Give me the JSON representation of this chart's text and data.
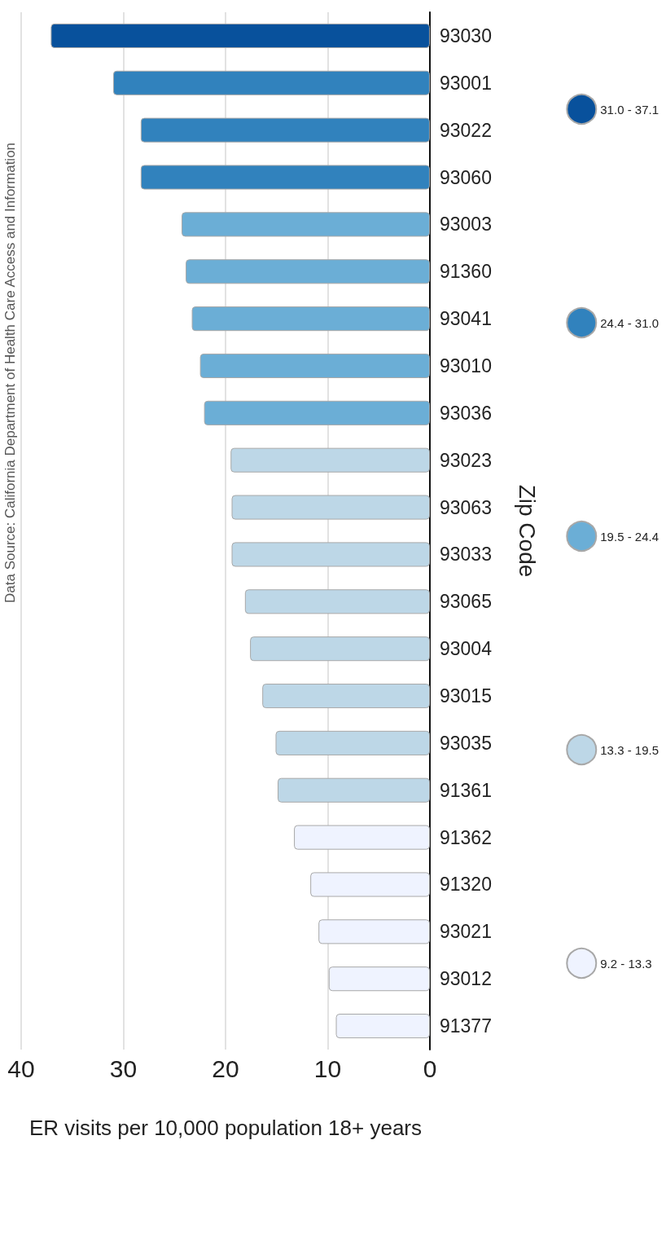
{
  "chart_data": {
    "type": "bar",
    "orientation": "horizontal",
    "xlabel": "ER visits per 10,000 population 18+ years",
    "ylabel": "Zip Code",
    "annotations": [
      "Data Source: California Department of Health Care Access and Information"
    ],
    "categories": [
      "93030",
      "93001",
      "93022",
      "93060",
      "93003",
      "91360",
      "93041",
      "93010",
      "93036",
      "93023",
      "93063",
      "93033",
      "93065",
      "93004",
      "93015",
      "93035",
      "91361",
      "91362",
      "91320",
      "93021",
      "93012",
      "91377"
    ],
    "stacked": true,
    "series": [
      {
        "name": "31.0 - 37.1",
        "color": "#08519c",
        "values": [
          37.1,
          null,
          null,
          null,
          null,
          null,
          null,
          null,
          null,
          null,
          null,
          null,
          null,
          null,
          null,
          null,
          null,
          null,
          null,
          null,
          null,
          null
        ]
      },
      {
        "name": "24.4 - 31.0",
        "color": "#3182bd",
        "values": [
          null,
          31.0,
          28.3,
          28.3,
          null,
          null,
          null,
          null,
          null,
          null,
          null,
          null,
          null,
          null,
          null,
          null,
          null,
          null,
          null,
          null,
          null,
          null
        ]
      },
      {
        "name": "19.5 - 24.4",
        "color": "#6baed6",
        "values": [
          null,
          null,
          null,
          null,
          24.3,
          23.9,
          23.3,
          22.5,
          22.1,
          null,
          null,
          null,
          null,
          null,
          null,
          null,
          null,
          null,
          null,
          null,
          null,
          null
        ]
      },
      {
        "name": "13.3 - 19.5",
        "color": "#bdd7e7",
        "values": [
          null,
          null,
          null,
          null,
          null,
          null,
          null,
          null,
          null,
          19.5,
          19.4,
          19.4,
          18.1,
          17.6,
          16.4,
          15.1,
          14.9,
          null,
          null,
          null,
          null,
          null
        ]
      },
      {
        "name": "9.2 - 13.3",
        "color": "#eff3ff",
        "values": [
          null,
          null,
          null,
          null,
          null,
          null,
          null,
          null,
          null,
          null,
          null,
          null,
          null,
          null,
          null,
          null,
          null,
          13.3,
          11.7,
          10.9,
          9.9,
          9.2
        ]
      }
    ],
    "xlim": [
      40,
      0
    ],
    "xticks": [
      40,
      30,
      20,
      10,
      0
    ],
    "grid": "x",
    "legend": "right"
  }
}
